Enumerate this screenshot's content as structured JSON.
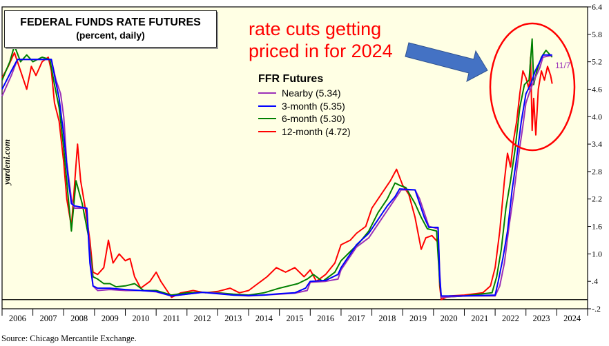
{
  "chart_data": {
    "type": "line",
    "title": "FEDERAL FUNDS RATE FUTURES",
    "subtitle": "(percent, daily)",
    "xlabel": "",
    "ylabel": "",
    "xlim": [
      2006,
      2025
    ],
    "ylim": [
      -0.2,
      6.4
    ],
    "x_tick_labels": [
      "2006",
      "2007",
      "2008",
      "2009",
      "2010",
      "2011",
      "2012",
      "2013",
      "2014",
      "2015",
      "2016",
      "2017",
      "2018",
      "2019",
      "2020",
      "2021",
      "2022",
      "2023",
      "2024"
    ],
    "y_ticks": [
      6.4,
      5.8,
      5.2,
      4.6,
      4.0,
      3.4,
      2.8,
      2.2,
      1.6,
      1.0,
      0.4,
      -0.2
    ],
    "y_tick_labels": [
      "6.4",
      "5.8",
      "5.2",
      "4.6",
      "4.0",
      "3.4",
      "2.8",
      "2.2",
      "1.6",
      "1.0",
      ".4",
      "-.2"
    ],
    "y_axis_side": "right",
    "zero_line": true,
    "grid": false,
    "legend": {
      "title": "FFR Futures",
      "placement": "center"
    },
    "last_date_label": "11/7",
    "series": [
      {
        "name": "Nearby (5.34)",
        "color": "#9b30b8",
        "points": [
          [
            2006.0,
            4.45
          ],
          [
            2006.3,
            4.9
          ],
          [
            2006.5,
            5.25
          ],
          [
            2007.6,
            5.25
          ],
          [
            2007.75,
            4.8
          ],
          [
            2007.9,
            4.5
          ],
          [
            2008.0,
            4.0
          ],
          [
            2008.1,
            3.0
          ],
          [
            2008.25,
            2.2
          ],
          [
            2008.35,
            2.0
          ],
          [
            2008.75,
            2.0
          ],
          [
            2008.85,
            1.0
          ],
          [
            2008.95,
            0.3
          ],
          [
            2009.1,
            0.2
          ],
          [
            2009.5,
            0.22
          ],
          [
            2010.0,
            0.2
          ],
          [
            2010.5,
            0.2
          ],
          [
            2011.0,
            0.17
          ],
          [
            2011.5,
            0.08
          ],
          [
            2012.0,
            0.12
          ],
          [
            2012.5,
            0.16
          ],
          [
            2013.0,
            0.14
          ],
          [
            2013.5,
            0.1
          ],
          [
            2014.0,
            0.08
          ],
          [
            2014.5,
            0.1
          ],
          [
            2015.0,
            0.12
          ],
          [
            2015.5,
            0.14
          ],
          [
            2015.9,
            0.2
          ],
          [
            2016.0,
            0.38
          ],
          [
            2016.5,
            0.4
          ],
          [
            2016.9,
            0.45
          ],
          [
            2017.0,
            0.65
          ],
          [
            2017.25,
            0.9
          ],
          [
            2017.5,
            1.15
          ],
          [
            2017.9,
            1.35
          ],
          [
            2018.2,
            1.65
          ],
          [
            2018.5,
            1.95
          ],
          [
            2018.75,
            2.2
          ],
          [
            2018.95,
            2.4
          ],
          [
            2019.4,
            2.4
          ],
          [
            2019.55,
            2.2
          ],
          [
            2019.7,
            1.9
          ],
          [
            2019.85,
            1.6
          ],
          [
            2020.15,
            1.55
          ],
          [
            2020.2,
            0.6
          ],
          [
            2020.25,
            0.05
          ],
          [
            2021.0,
            0.08
          ],
          [
            2022.0,
            0.08
          ],
          [
            2022.15,
            0.3
          ],
          [
            2022.3,
            0.8
          ],
          [
            2022.45,
            1.6
          ],
          [
            2022.6,
            2.3
          ],
          [
            2022.75,
            3.1
          ],
          [
            2022.9,
            3.8
          ],
          [
            2023.0,
            4.3
          ],
          [
            2023.15,
            4.6
          ],
          [
            2023.3,
            4.85
          ],
          [
            2023.45,
            5.07
          ],
          [
            2023.55,
            5.3
          ],
          [
            2023.85,
            5.34
          ]
        ]
      },
      {
        "name": "3-month (5.35)",
        "color": "#0000ff",
        "points": [
          [
            2006.0,
            4.6
          ],
          [
            2006.3,
            5.0
          ],
          [
            2006.5,
            5.25
          ],
          [
            2007.6,
            5.25
          ],
          [
            2007.7,
            4.9
          ],
          [
            2007.85,
            4.4
          ],
          [
            2008.0,
            3.6
          ],
          [
            2008.15,
            2.6
          ],
          [
            2008.25,
            2.1
          ],
          [
            2008.35,
            2.05
          ],
          [
            2008.75,
            2.0
          ],
          [
            2008.85,
            0.8
          ],
          [
            2008.95,
            0.3
          ],
          [
            2009.1,
            0.25
          ],
          [
            2009.5,
            0.25
          ],
          [
            2010.0,
            0.22
          ],
          [
            2010.5,
            0.2
          ],
          [
            2011.0,
            0.18
          ],
          [
            2011.5,
            0.08
          ],
          [
            2012.0,
            0.12
          ],
          [
            2012.5,
            0.16
          ],
          [
            2013.0,
            0.13
          ],
          [
            2013.5,
            0.1
          ],
          [
            2014.0,
            0.09
          ],
          [
            2014.5,
            0.1
          ],
          [
            2015.0,
            0.13
          ],
          [
            2015.5,
            0.15
          ],
          [
            2015.85,
            0.25
          ],
          [
            2016.0,
            0.4
          ],
          [
            2016.5,
            0.42
          ],
          [
            2016.9,
            0.55
          ],
          [
            2017.0,
            0.7
          ],
          [
            2017.25,
            0.95
          ],
          [
            2017.5,
            1.2
          ],
          [
            2017.9,
            1.45
          ],
          [
            2018.2,
            1.75
          ],
          [
            2018.5,
            2.05
          ],
          [
            2018.75,
            2.25
          ],
          [
            2018.9,
            2.42
          ],
          [
            2019.4,
            2.4
          ],
          [
            2019.55,
            2.1
          ],
          [
            2019.7,
            1.8
          ],
          [
            2019.85,
            1.58
          ],
          [
            2020.15,
            1.58
          ],
          [
            2020.2,
            0.5
          ],
          [
            2020.25,
            0.08
          ],
          [
            2021.0,
            0.08
          ],
          [
            2022.0,
            0.1
          ],
          [
            2022.1,
            0.4
          ],
          [
            2022.25,
            0.9
          ],
          [
            2022.4,
            1.5
          ],
          [
            2022.55,
            2.4
          ],
          [
            2022.7,
            3.1
          ],
          [
            2022.85,
            3.9
          ],
          [
            2023.0,
            4.5
          ],
          [
            2023.15,
            4.7
          ],
          [
            2023.3,
            5.0
          ],
          [
            2023.45,
            5.2
          ],
          [
            2023.55,
            5.35
          ],
          [
            2023.85,
            5.35
          ]
        ]
      },
      {
        "name": "6-month (5.30)",
        "color": "#008000",
        "points": [
          [
            2006.0,
            4.8
          ],
          [
            2006.25,
            5.2
          ],
          [
            2006.4,
            5.55
          ],
          [
            2006.6,
            5.2
          ],
          [
            2006.8,
            5.35
          ],
          [
            2007.0,
            5.2
          ],
          [
            2007.3,
            5.3
          ],
          [
            2007.55,
            5.25
          ],
          [
            2007.7,
            4.7
          ],
          [
            2007.85,
            4.2
          ],
          [
            2008.0,
            3.3
          ],
          [
            2008.15,
            2.2
          ],
          [
            2008.25,
            1.5
          ],
          [
            2008.4,
            2.6
          ],
          [
            2008.6,
            2.1
          ],
          [
            2008.8,
            1.4
          ],
          [
            2008.95,
            0.5
          ],
          [
            2009.1,
            0.45
          ],
          [
            2009.3,
            0.35
          ],
          [
            2009.5,
            0.35
          ],
          [
            2009.7,
            0.28
          ],
          [
            2010.0,
            0.3
          ],
          [
            2010.3,
            0.35
          ],
          [
            2010.6,
            0.2
          ],
          [
            2011.0,
            0.2
          ],
          [
            2011.5,
            0.1
          ],
          [
            2012.0,
            0.15
          ],
          [
            2012.5,
            0.16
          ],
          [
            2013.0,
            0.15
          ],
          [
            2013.5,
            0.12
          ],
          [
            2014.0,
            0.1
          ],
          [
            2014.5,
            0.15
          ],
          [
            2015.0,
            0.25
          ],
          [
            2015.3,
            0.3
          ],
          [
            2015.6,
            0.35
          ],
          [
            2015.9,
            0.45
          ],
          [
            2016.1,
            0.55
          ],
          [
            2016.4,
            0.4
          ],
          [
            2016.8,
            0.6
          ],
          [
            2017.0,
            0.85
          ],
          [
            2017.3,
            1.05
          ],
          [
            2017.6,
            1.25
          ],
          [
            2017.9,
            1.5
          ],
          [
            2018.2,
            1.9
          ],
          [
            2018.5,
            2.2
          ],
          [
            2018.75,
            2.55
          ],
          [
            2018.9,
            2.5
          ],
          [
            2019.1,
            2.45
          ],
          [
            2019.4,
            2.1
          ],
          [
            2019.6,
            1.8
          ],
          [
            2019.8,
            1.55
          ],
          [
            2020.1,
            1.5
          ],
          [
            2020.2,
            0.4
          ],
          [
            2020.25,
            0.05
          ],
          [
            2021.0,
            0.08
          ],
          [
            2021.9,
            0.15
          ],
          [
            2022.05,
            0.5
          ],
          [
            2022.2,
            1.1
          ],
          [
            2022.35,
            2.0
          ],
          [
            2022.5,
            2.6
          ],
          [
            2022.65,
            3.3
          ],
          [
            2022.8,
            4.2
          ],
          [
            2022.95,
            4.7
          ],
          [
            2023.1,
            4.8
          ],
          [
            2023.2,
            5.7
          ],
          [
            2023.25,
            4.7
          ],
          [
            2023.35,
            5.0
          ],
          [
            2023.5,
            5.3
          ],
          [
            2023.65,
            5.45
          ],
          [
            2023.85,
            5.3
          ]
        ]
      },
      {
        "name": "12-month (4.72)",
        "color": "#ff0000",
        "points": [
          [
            2006.0,
            4.85
          ],
          [
            2006.2,
            5.1
          ],
          [
            2006.4,
            5.4
          ],
          [
            2006.6,
            5.0
          ],
          [
            2006.8,
            4.6
          ],
          [
            2006.95,
            5.1
          ],
          [
            2007.1,
            4.9
          ],
          [
            2007.3,
            5.2
          ],
          [
            2007.5,
            5.3
          ],
          [
            2007.6,
            5.0
          ],
          [
            2007.7,
            4.3
          ],
          [
            2007.85,
            3.9
          ],
          [
            2008.0,
            3.0
          ],
          [
            2008.1,
            2.2
          ],
          [
            2008.25,
            1.6
          ],
          [
            2008.35,
            2.5
          ],
          [
            2008.45,
            3.4
          ],
          [
            2008.55,
            2.6
          ],
          [
            2008.7,
            2.0
          ],
          [
            2008.85,
            1.3
          ],
          [
            2008.95,
            0.6
          ],
          [
            2009.1,
            0.55
          ],
          [
            2009.3,
            0.7
          ],
          [
            2009.45,
            1.3
          ],
          [
            2009.6,
            0.8
          ],
          [
            2009.8,
            1.0
          ],
          [
            2010.0,
            0.85
          ],
          [
            2010.15,
            0.9
          ],
          [
            2010.3,
            0.5
          ],
          [
            2010.5,
            0.25
          ],
          [
            2010.8,
            0.4
          ],
          [
            2011.0,
            0.6
          ],
          [
            2011.15,
            0.4
          ],
          [
            2011.35,
            0.2
          ],
          [
            2011.5,
            0.05
          ],
          [
            2011.8,
            0.15
          ],
          [
            2012.2,
            0.2
          ],
          [
            2012.6,
            0.15
          ],
          [
            2013.0,
            0.18
          ],
          [
            2013.4,
            0.25
          ],
          [
            2013.7,
            0.15
          ],
          [
            2014.0,
            0.2
          ],
          [
            2014.3,
            0.35
          ],
          [
            2014.6,
            0.5
          ],
          [
            2014.9,
            0.7
          ],
          [
            2015.2,
            0.6
          ],
          [
            2015.5,
            0.7
          ],
          [
            2015.8,
            0.5
          ],
          [
            2016.0,
            0.65
          ],
          [
            2016.2,
            0.4
          ],
          [
            2016.5,
            0.55
          ],
          [
            2016.8,
            0.8
          ],
          [
            2017.0,
            1.2
          ],
          [
            2017.3,
            1.3
          ],
          [
            2017.5,
            1.45
          ],
          [
            2017.8,
            1.6
          ],
          [
            2018.0,
            2.0
          ],
          [
            2018.3,
            2.3
          ],
          [
            2018.6,
            2.6
          ],
          [
            2018.8,
            2.85
          ],
          [
            2019.0,
            2.5
          ],
          [
            2019.2,
            2.3
          ],
          [
            2019.4,
            1.8
          ],
          [
            2019.6,
            1.1
          ],
          [
            2019.75,
            1.35
          ],
          [
            2019.95,
            1.4
          ],
          [
            2020.15,
            1.25
          ],
          [
            2020.2,
            0.3
          ],
          [
            2020.25,
            0.0
          ],
          [
            2020.5,
            0.08
          ],
          [
            2021.0,
            0.1
          ],
          [
            2021.6,
            0.15
          ],
          [
            2021.85,
            0.3
          ],
          [
            2022.0,
            0.7
          ],
          [
            2022.15,
            1.5
          ],
          [
            2022.3,
            2.6
          ],
          [
            2022.4,
            3.2
          ],
          [
            2022.5,
            2.9
          ],
          [
            2022.6,
            3.5
          ],
          [
            2022.7,
            3.9
          ],
          [
            2022.8,
            4.5
          ],
          [
            2022.9,
            5.0
          ],
          [
            2023.0,
            4.85
          ],
          [
            2023.1,
            4.6
          ],
          [
            2023.15,
            5.3
          ],
          [
            2023.2,
            3.7
          ],
          [
            2023.25,
            4.4
          ],
          [
            2023.32,
            3.6
          ],
          [
            2023.4,
            4.6
          ],
          [
            2023.5,
            5.0
          ],
          [
            2023.6,
            4.8
          ],
          [
            2023.7,
            5.1
          ],
          [
            2023.8,
            4.9
          ],
          [
            2023.85,
            4.72
          ]
        ]
      }
    ]
  },
  "annotation": {
    "text_line1": "rate cuts getting",
    "text_line2": "priced in for 2024",
    "text_color": "#ff0000",
    "arrow_color": "#4472c4",
    "circle_color": "#ff0000"
  },
  "watermark": "yardeni.com",
  "source": "Source: Chicago Mercantile Exchange.",
  "colors": {
    "plot_background": "#ffffe4"
  }
}
